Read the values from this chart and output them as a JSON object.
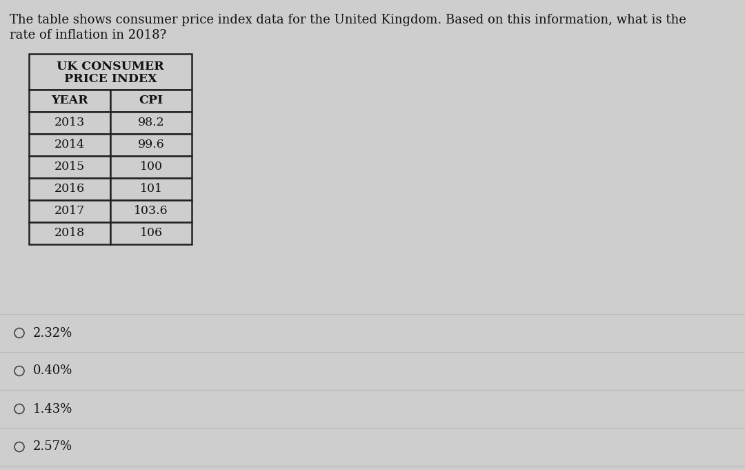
{
  "question_text_line1": "The table shows consumer price index data for the United Kingdom. Based on this information, what is the",
  "question_text_line2": "rate of inflation in 2018?",
  "table_title_line1": "UK CONSUMER",
  "table_title_line2": "PRICE INDEX",
  "col_headers": [
    "YEAR",
    "CPI"
  ],
  "rows": [
    [
      "2013",
      "98.2"
    ],
    [
      "2014",
      "99.6"
    ],
    [
      "2015",
      "100"
    ],
    [
      "2016",
      "101"
    ],
    [
      "2017",
      "103.6"
    ],
    [
      "2018",
      "106"
    ]
  ],
  "options": [
    "2.32%",
    "0.40%",
    "1.43%",
    "2.57%"
  ],
  "bg_color": "#cecece",
  "table_bg": "#cecece",
  "text_color": "#111111",
  "font_size_question": 13.0,
  "font_size_table_title": 12.5,
  "font_size_table_header": 12.5,
  "font_size_table_data": 12.5,
  "font_size_options": 13.0,
  "fig_width": 10.8,
  "fig_height": 6.81,
  "dpi": 100
}
